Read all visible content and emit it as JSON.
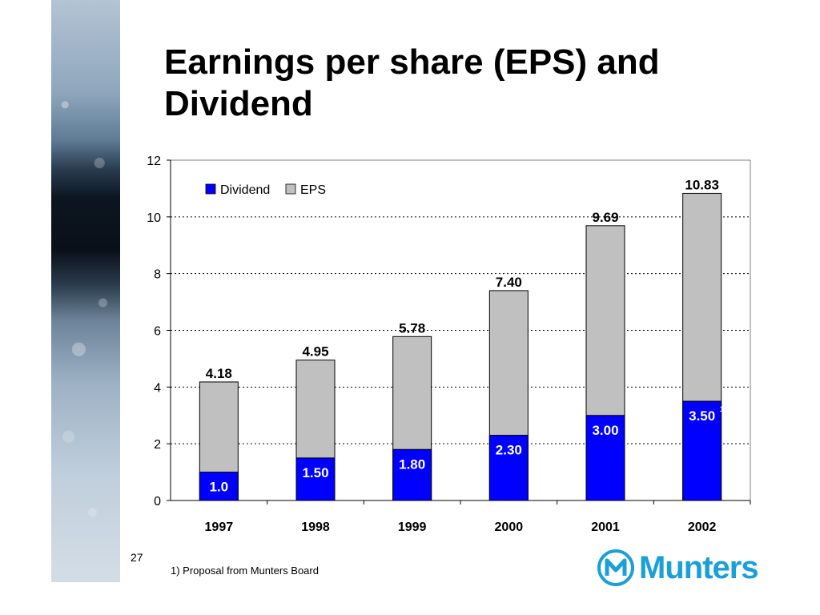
{
  "slide": {
    "title": "Earnings per share (EPS) and Dividend",
    "page_number": "27",
    "footnote": "1)  Proposal from Munters Board",
    "logo_text": "Munters",
    "brand_color": "#1a9fd9"
  },
  "chart_data": {
    "type": "bar",
    "stacked": true,
    "categories": [
      "1997",
      "1998",
      "1999",
      "2000",
      "2001",
      "2002"
    ],
    "series": [
      {
        "name": "Dividend",
        "color": "#0000ff",
        "values": [
          1.0,
          1.5,
          1.8,
          2.3,
          3.0,
          3.5
        ]
      },
      {
        "name": "EPS",
        "color": "#c0c0c0",
        "totals": [
          4.18,
          4.95,
          5.78,
          7.4,
          9.69,
          10.83
        ]
      }
    ],
    "dividend_labels": [
      "1.0",
      "1.50",
      "1.80",
      "2.30",
      "3.00",
      "3.50"
    ],
    "eps_labels": [
      "4.18",
      "4.95",
      "5.78",
      "7.40",
      "9.69",
      "10.83"
    ],
    "footnote_marks": [
      "",
      "",
      "",
      "",
      "",
      "1)"
    ],
    "yticks": [
      "0",
      "2",
      "4",
      "6",
      "8",
      "10",
      "12"
    ],
    "ylim": [
      0,
      12
    ],
    "grid": true,
    "legend_position": "top-left"
  }
}
